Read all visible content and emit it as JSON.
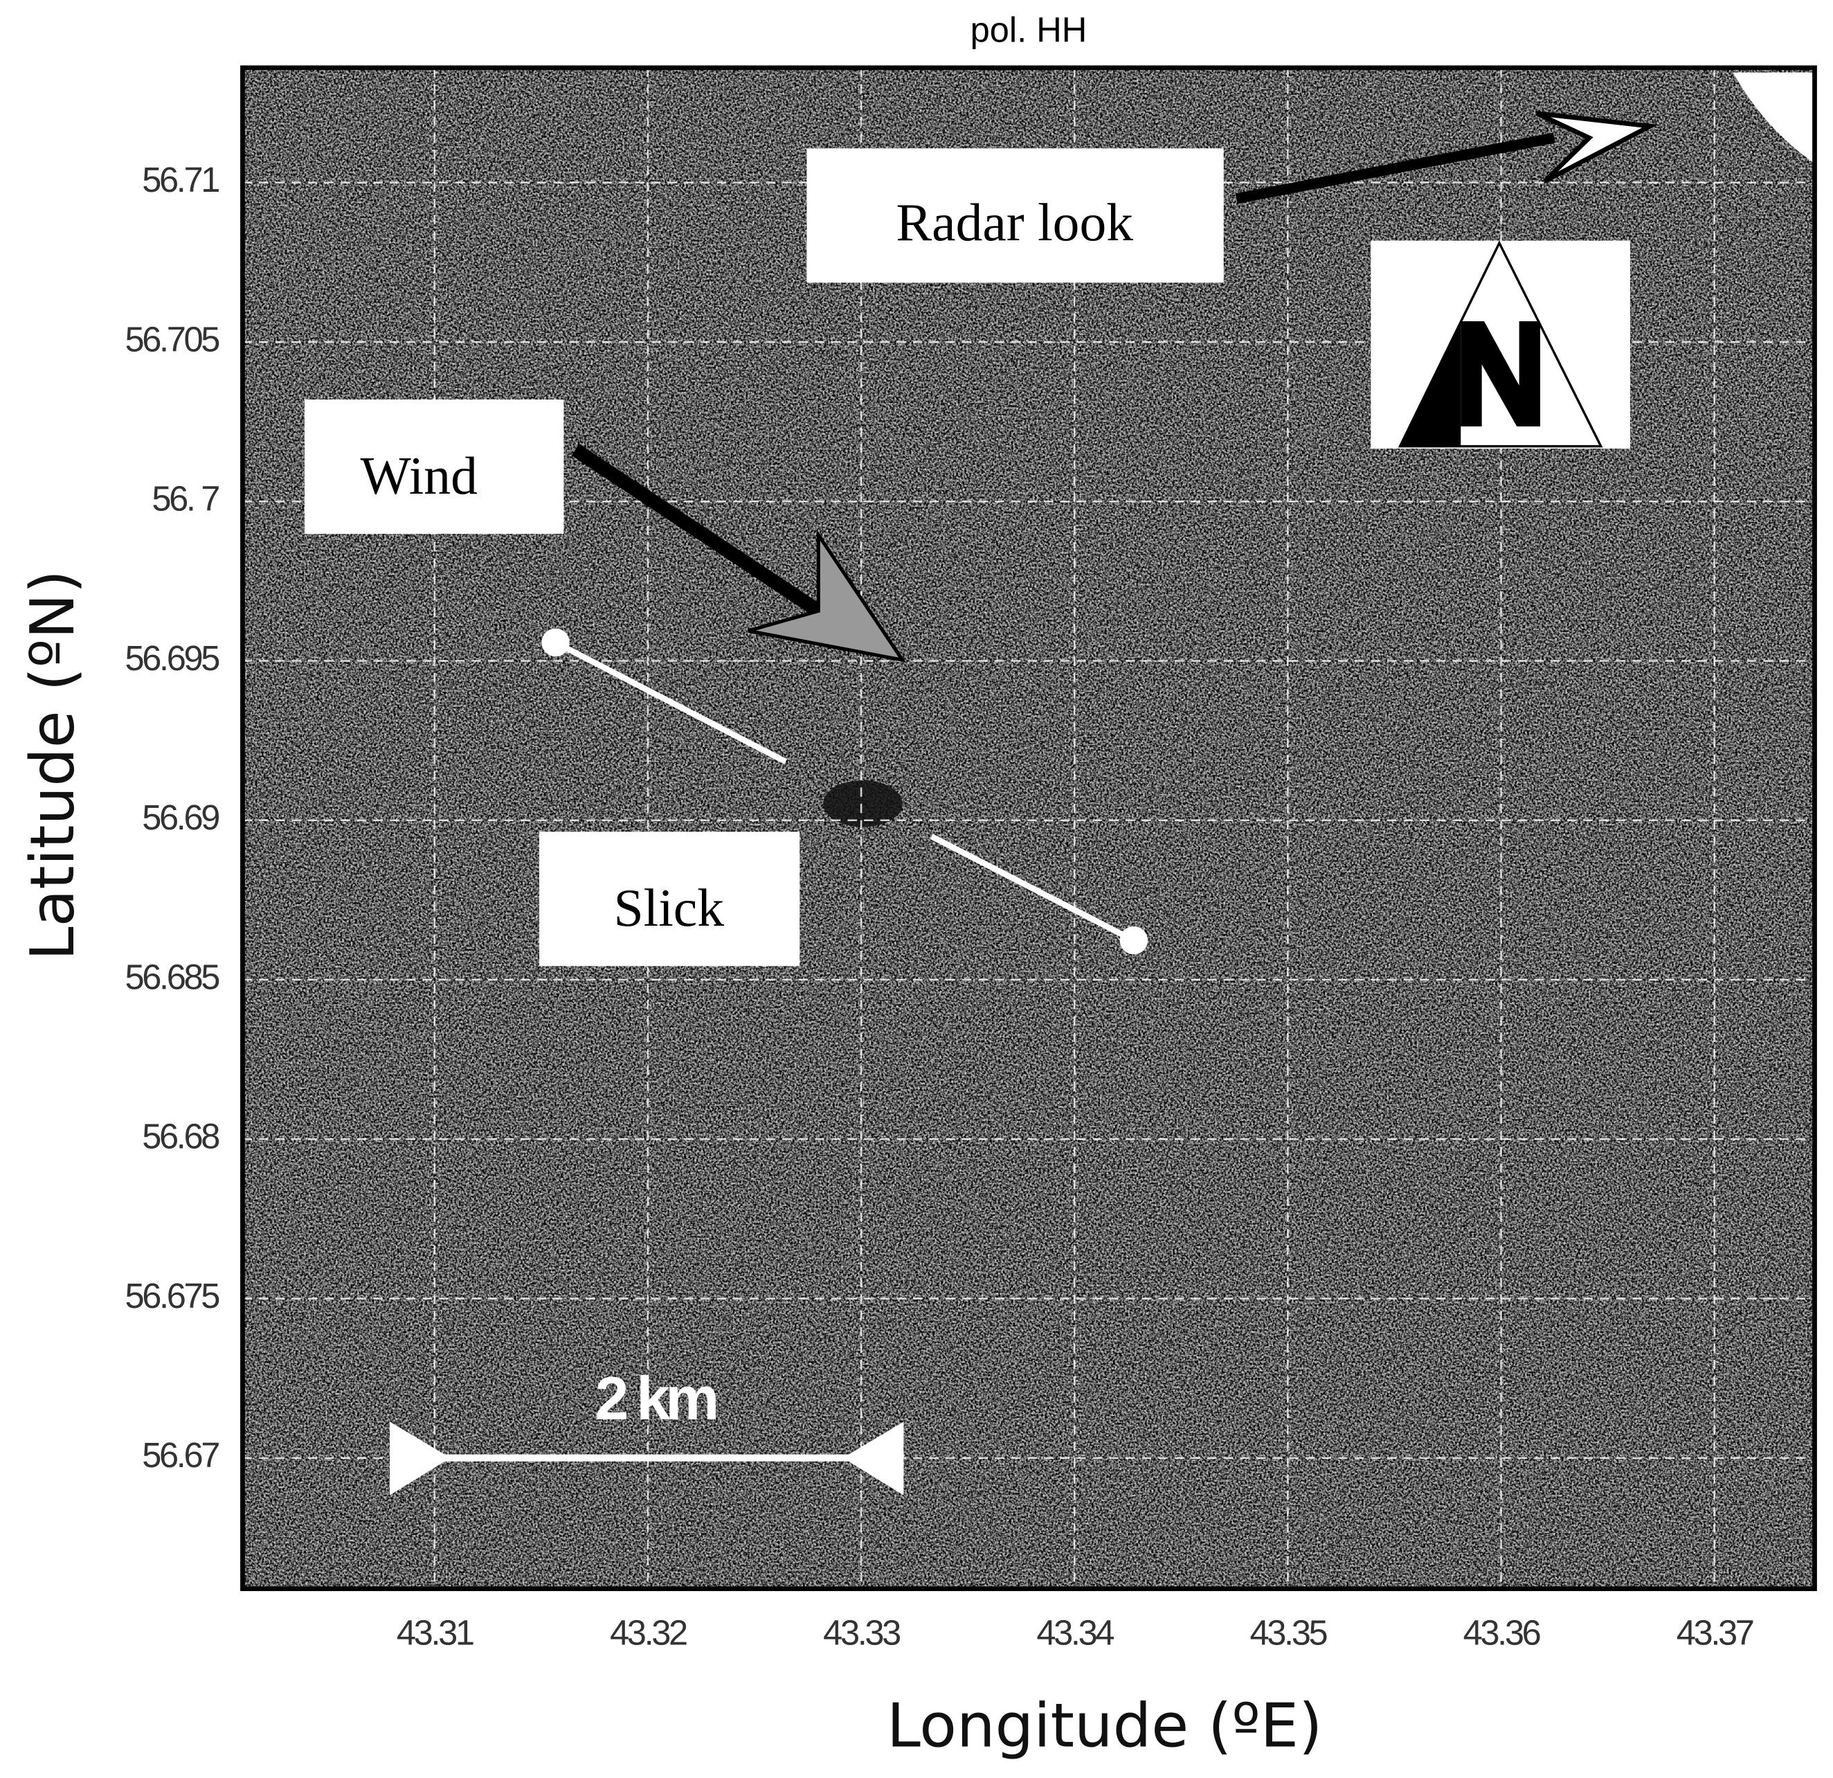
{
  "chart_data": {
    "type": "map",
    "title": "pol.  HH",
    "xlabel": "Longitude (ºE)",
    "ylabel": "Latitude (ºN)",
    "xlim": [
      43.301,
      43.3747
    ],
    "ylim": [
      56.6659,
      56.7136
    ],
    "xticks": [
      43.31,
      43.32,
      43.33,
      43.34,
      43.35,
      43.36,
      43.37
    ],
    "yticks": [
      56.67,
      56.675,
      56.68,
      56.685,
      56.69,
      56.695,
      {
        "value": 56.7,
        "label": "56. 7"
      },
      56.705,
      56.71
    ],
    "grid": true,
    "annotations": [
      "Radar look",
      "Wind",
      "Slick",
      "2 km"
    ]
  }
}
